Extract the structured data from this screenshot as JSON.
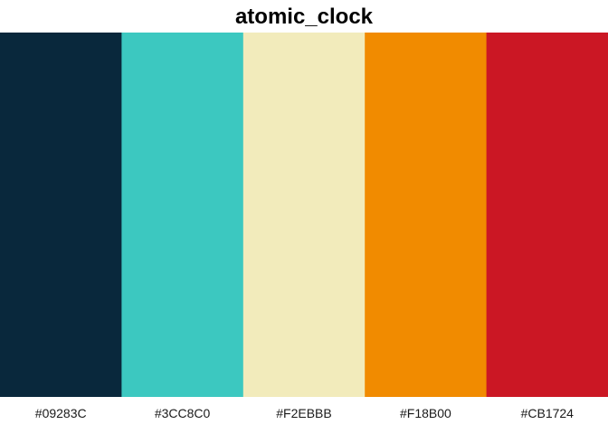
{
  "chart_data": {
    "type": "bar",
    "title": "atomic_clock",
    "categories": [
      "#09283C",
      "#3CC8C0",
      "#F2EBBB",
      "#F18B00",
      "#CB1724"
    ],
    "values": [
      1,
      1,
      1,
      1,
      1
    ],
    "series": [
      {
        "values": [
          1,
          1,
          1,
          1,
          1
        ],
        "colors": [
          "#09283C",
          "#3CC8C0",
          "#F2EBBB",
          "#F18B00",
          "#CB1724"
        ]
      }
    ],
    "xlabel": "",
    "ylabel": "",
    "grid": false,
    "legend": "none"
  }
}
